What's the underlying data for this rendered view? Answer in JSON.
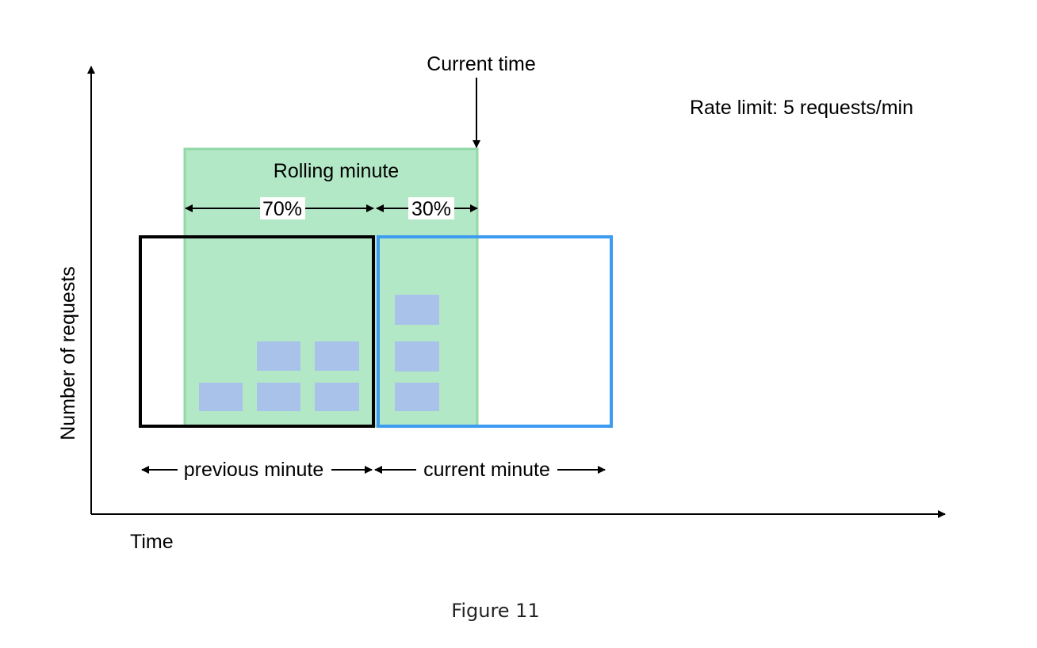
{
  "diagram": {
    "y_axis_label": "Number of requests",
    "x_axis_label": "Time",
    "current_time_label": "Current time",
    "rate_limit_label": "Rate limit: 5 requests/min",
    "rolling_window_label": "Rolling minute",
    "previous_fraction_label": "70%",
    "current_fraction_label": "30%",
    "previous_minute_label": "previous minute",
    "current_minute_label": "current minute",
    "previous_minute_requests": 5,
    "current_minute_requests": 3,
    "colors": {
      "rolling_window": "#b3e8c6",
      "rolling_window_border": "#92d8a8",
      "request_block": "#a8c2ea",
      "previous_window_border": "#000000",
      "current_window_border": "#3d9cf0"
    }
  },
  "caption": "Figure 11"
}
